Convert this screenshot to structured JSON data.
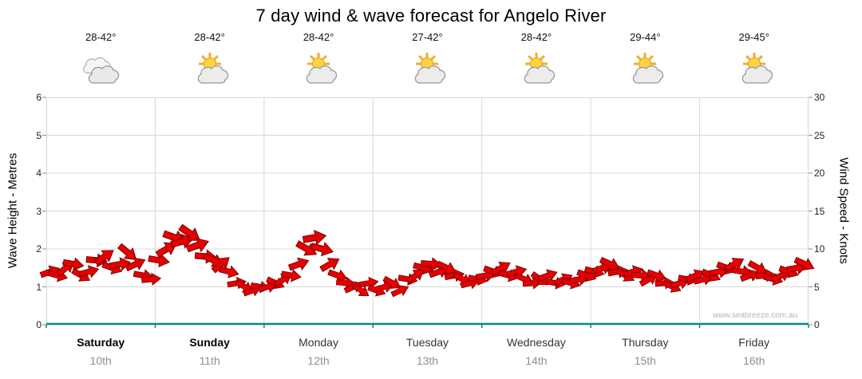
{
  "title": "7 day wind & wave forecast for Angelo River",
  "watermark": "www.seabreeze.com.au",
  "days": [
    {
      "name": "Saturday",
      "date": "10th",
      "temp": "28-42°",
      "icon": "cloudy",
      "bold": true
    },
    {
      "name": "Sunday",
      "date": "11th",
      "temp": "28-42°",
      "icon": "partly-cloudy",
      "bold": true
    },
    {
      "name": "Monday",
      "date": "12th",
      "temp": "28-42°",
      "icon": "partly-cloudy",
      "bold": false
    },
    {
      "name": "Tuesday",
      "date": "13th",
      "temp": "27-42°",
      "icon": "partly-cloudy",
      "bold": false
    },
    {
      "name": "Wednesday",
      "date": "14th",
      "temp": "28-42°",
      "icon": "partly-cloudy",
      "bold": false
    },
    {
      "name": "Thursday",
      "date": "15th",
      "temp": "29-44°",
      "icon": "partly-cloudy",
      "bold": false
    },
    {
      "name": "Friday",
      "date": "16th",
      "temp": "29-45°",
      "icon": "partly-cloudy",
      "bold": false
    }
  ],
  "axes": {
    "left_label": "Wave Height - Metres",
    "right_label": "Wind Speed - Knots",
    "left_ticks": [
      0,
      1,
      2,
      3,
      4,
      5,
      6
    ],
    "right_ticks": [
      0,
      5,
      10,
      15,
      20,
      25,
      30
    ]
  },
  "colors": {
    "arrow": "#e60000",
    "arrow_outline": "#7a0000",
    "axis_bottom": "#008b8b",
    "grid": "#d8d8d8",
    "tick": "#8a8a8a"
  },
  "chart_data": {
    "type": "wind-arrows",
    "categories": [
      "Saturday 10th",
      "Sunday 11th",
      "Monday 12th",
      "Tuesday 13th",
      "Wednesday 14th",
      "Thursday 15th",
      "Friday 16th"
    ],
    "temperatures": [
      "28-42°",
      "28-42°",
      "28-42°",
      "27-42°",
      "28-42°",
      "29-44°",
      "29-45°"
    ],
    "icons": [
      "cloudy",
      "partly-cloudy",
      "partly-cloudy",
      "partly-cloudy",
      "partly-cloudy",
      "partly-cloudy",
      "partly-cloudy"
    ],
    "left_axis": {
      "label": "Wave Height - Metres",
      "min": 0,
      "max": 6
    },
    "right_axis": {
      "label": "Wind Speed - Knots",
      "min": 0,
      "max": 30
    },
    "samples_per_day": 14,
    "wind_units": "knots, rotation_deg",
    "wind": [
      [
        7,
        -20
      ],
      [
        6.5,
        15
      ],
      [
        7.5,
        -40
      ],
      [
        8,
        10
      ],
      [
        6.5,
        30
      ],
      [
        7,
        -15
      ],
      [
        8.5,
        5
      ],
      [
        9,
        -35
      ],
      [
        7.5,
        20
      ],
      [
        8,
        -10
      ],
      [
        9.5,
        40
      ],
      [
        8,
        -25
      ],
      [
        6.5,
        10
      ],
      [
        6,
        -5
      ],
      [
        8.5,
        10
      ],
      [
        10,
        -30
      ],
      [
        11.5,
        20
      ],
      [
        11,
        -15
      ],
      [
        12,
        35
      ],
      [
        10.5,
        -20
      ],
      [
        9,
        5
      ],
      [
        8.5,
        25
      ],
      [
        8,
        -40
      ],
      [
        7,
        15
      ],
      [
        5.5,
        -10
      ],
      [
        5,
        30
      ],
      [
        4.5,
        -20
      ],
      [
        5,
        10
      ],
      [
        5,
        -15
      ],
      [
        5.5,
        25
      ],
      [
        6,
        -35
      ],
      [
        6.5,
        10
      ],
      [
        8,
        -20
      ],
      [
        10,
        30
      ],
      [
        11.5,
        -10
      ],
      [
        10,
        15
      ],
      [
        8,
        -30
      ],
      [
        6.5,
        20
      ],
      [
        5.5,
        5
      ],
      [
        5,
        -25
      ],
      [
        4.5,
        35
      ],
      [
        5.5,
        -10
      ],
      [
        4.5,
        20
      ],
      [
        5,
        -15
      ],
      [
        5.5,
        30
      ],
      [
        4.5,
        -25
      ],
      [
        6,
        10
      ],
      [
        6.5,
        -35
      ],
      [
        7.5,
        15
      ],
      [
        8,
        5
      ],
      [
        7,
        -20
      ],
      [
        7.5,
        25
      ],
      [
        6.5,
        -10
      ],
      [
        6,
        30
      ],
      [
        5.5,
        -15
      ],
      [
        6,
        10
      ],
      [
        6.5,
        -10
      ],
      [
        7,
        20
      ],
      [
        7.5,
        -30
      ],
      [
        6.5,
        15
      ],
      [
        7,
        -15
      ],
      [
        6,
        25
      ],
      [
        5.5,
        -5
      ],
      [
        6,
        35
      ],
      [
        6.5,
        -20
      ],
      [
        5.5,
        10
      ],
      [
        6,
        -25
      ],
      [
        5.5,
        15
      ],
      [
        6,
        -10
      ],
      [
        6.5,
        20
      ],
      [
        7,
        15
      ],
      [
        7.5,
        -20
      ],
      [
        8,
        25
      ],
      [
        7,
        -10
      ],
      [
        6.5,
        30
      ],
      [
        7,
        -15
      ],
      [
        6.5,
        5
      ],
      [
        6,
        -30
      ],
      [
        6.5,
        20
      ],
      [
        5.5,
        -5
      ],
      [
        5,
        25
      ],
      [
        5.5,
        -15
      ],
      [
        6,
        10
      ],
      [
        6.5,
        -25
      ],
      [
        6,
        -15
      ],
      [
        6.5,
        25
      ],
      [
        7,
        -10
      ],
      [
        7.5,
        20
      ],
      [
        8,
        -30
      ],
      [
        7,
        10
      ],
      [
        6.5,
        -20
      ],
      [
        7.5,
        30
      ],
      [
        6.5,
        -5
      ],
      [
        6,
        15
      ],
      [
        6.5,
        -25
      ],
      [
        7,
        20
      ],
      [
        7.5,
        -10
      ],
      [
        8,
        25
      ]
    ]
  }
}
